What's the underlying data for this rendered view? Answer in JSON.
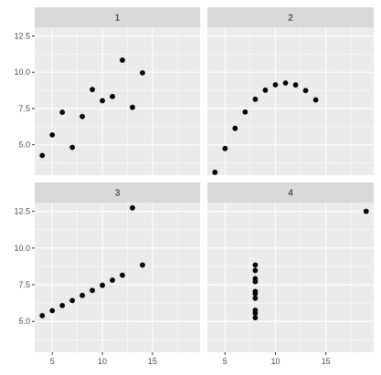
{
  "chart_data": {
    "type": "scatter",
    "facets": [
      "1",
      "2",
      "3",
      "4"
    ],
    "layout": "2x2 facet grid, shared axes",
    "xlim": [
      3.25,
      19.75
    ],
    "ylim": [
      2.9,
      13.1
    ],
    "x_ticks": [
      5,
      10,
      15
    ],
    "y_ticks": [
      5.0,
      7.5,
      10.0,
      12.5
    ],
    "x_tick_labels": [
      "5",
      "10",
      "15"
    ],
    "y_tick_labels": [
      "5.0",
      "7.5",
      "10.0",
      "12.5"
    ],
    "grid": true,
    "point_color": "#000000",
    "panel_background": "#ebebeb",
    "strip_background": "#d9d9d9",
    "series": [
      {
        "facet": "1",
        "x": [
          10,
          8,
          13,
          9,
          11,
          14,
          6,
          4,
          12,
          7,
          5
        ],
        "y": [
          8.04,
          6.95,
          7.58,
          8.81,
          8.33,
          9.96,
          7.24,
          4.26,
          10.84,
          4.82,
          5.68
        ]
      },
      {
        "facet": "2",
        "x": [
          10,
          8,
          13,
          9,
          11,
          14,
          6,
          4,
          12,
          7,
          5
        ],
        "y": [
          9.14,
          8.14,
          8.74,
          8.77,
          9.26,
          8.1,
          6.13,
          3.1,
          9.13,
          7.26,
          4.74
        ]
      },
      {
        "facet": "3",
        "x": [
          10,
          8,
          13,
          9,
          11,
          14,
          6,
          4,
          12,
          7,
          5
        ],
        "y": [
          7.46,
          6.77,
          12.74,
          7.11,
          7.81,
          8.84,
          6.08,
          5.39,
          8.15,
          6.42,
          5.73
        ]
      },
      {
        "facet": "4",
        "x": [
          8,
          8,
          8,
          8,
          8,
          8,
          8,
          19,
          8,
          8,
          8
        ],
        "y": [
          6.58,
          5.76,
          7.71,
          8.84,
          8.47,
          7.04,
          5.25,
          12.5,
          5.56,
          7.91,
          6.89
        ]
      }
    ]
  }
}
